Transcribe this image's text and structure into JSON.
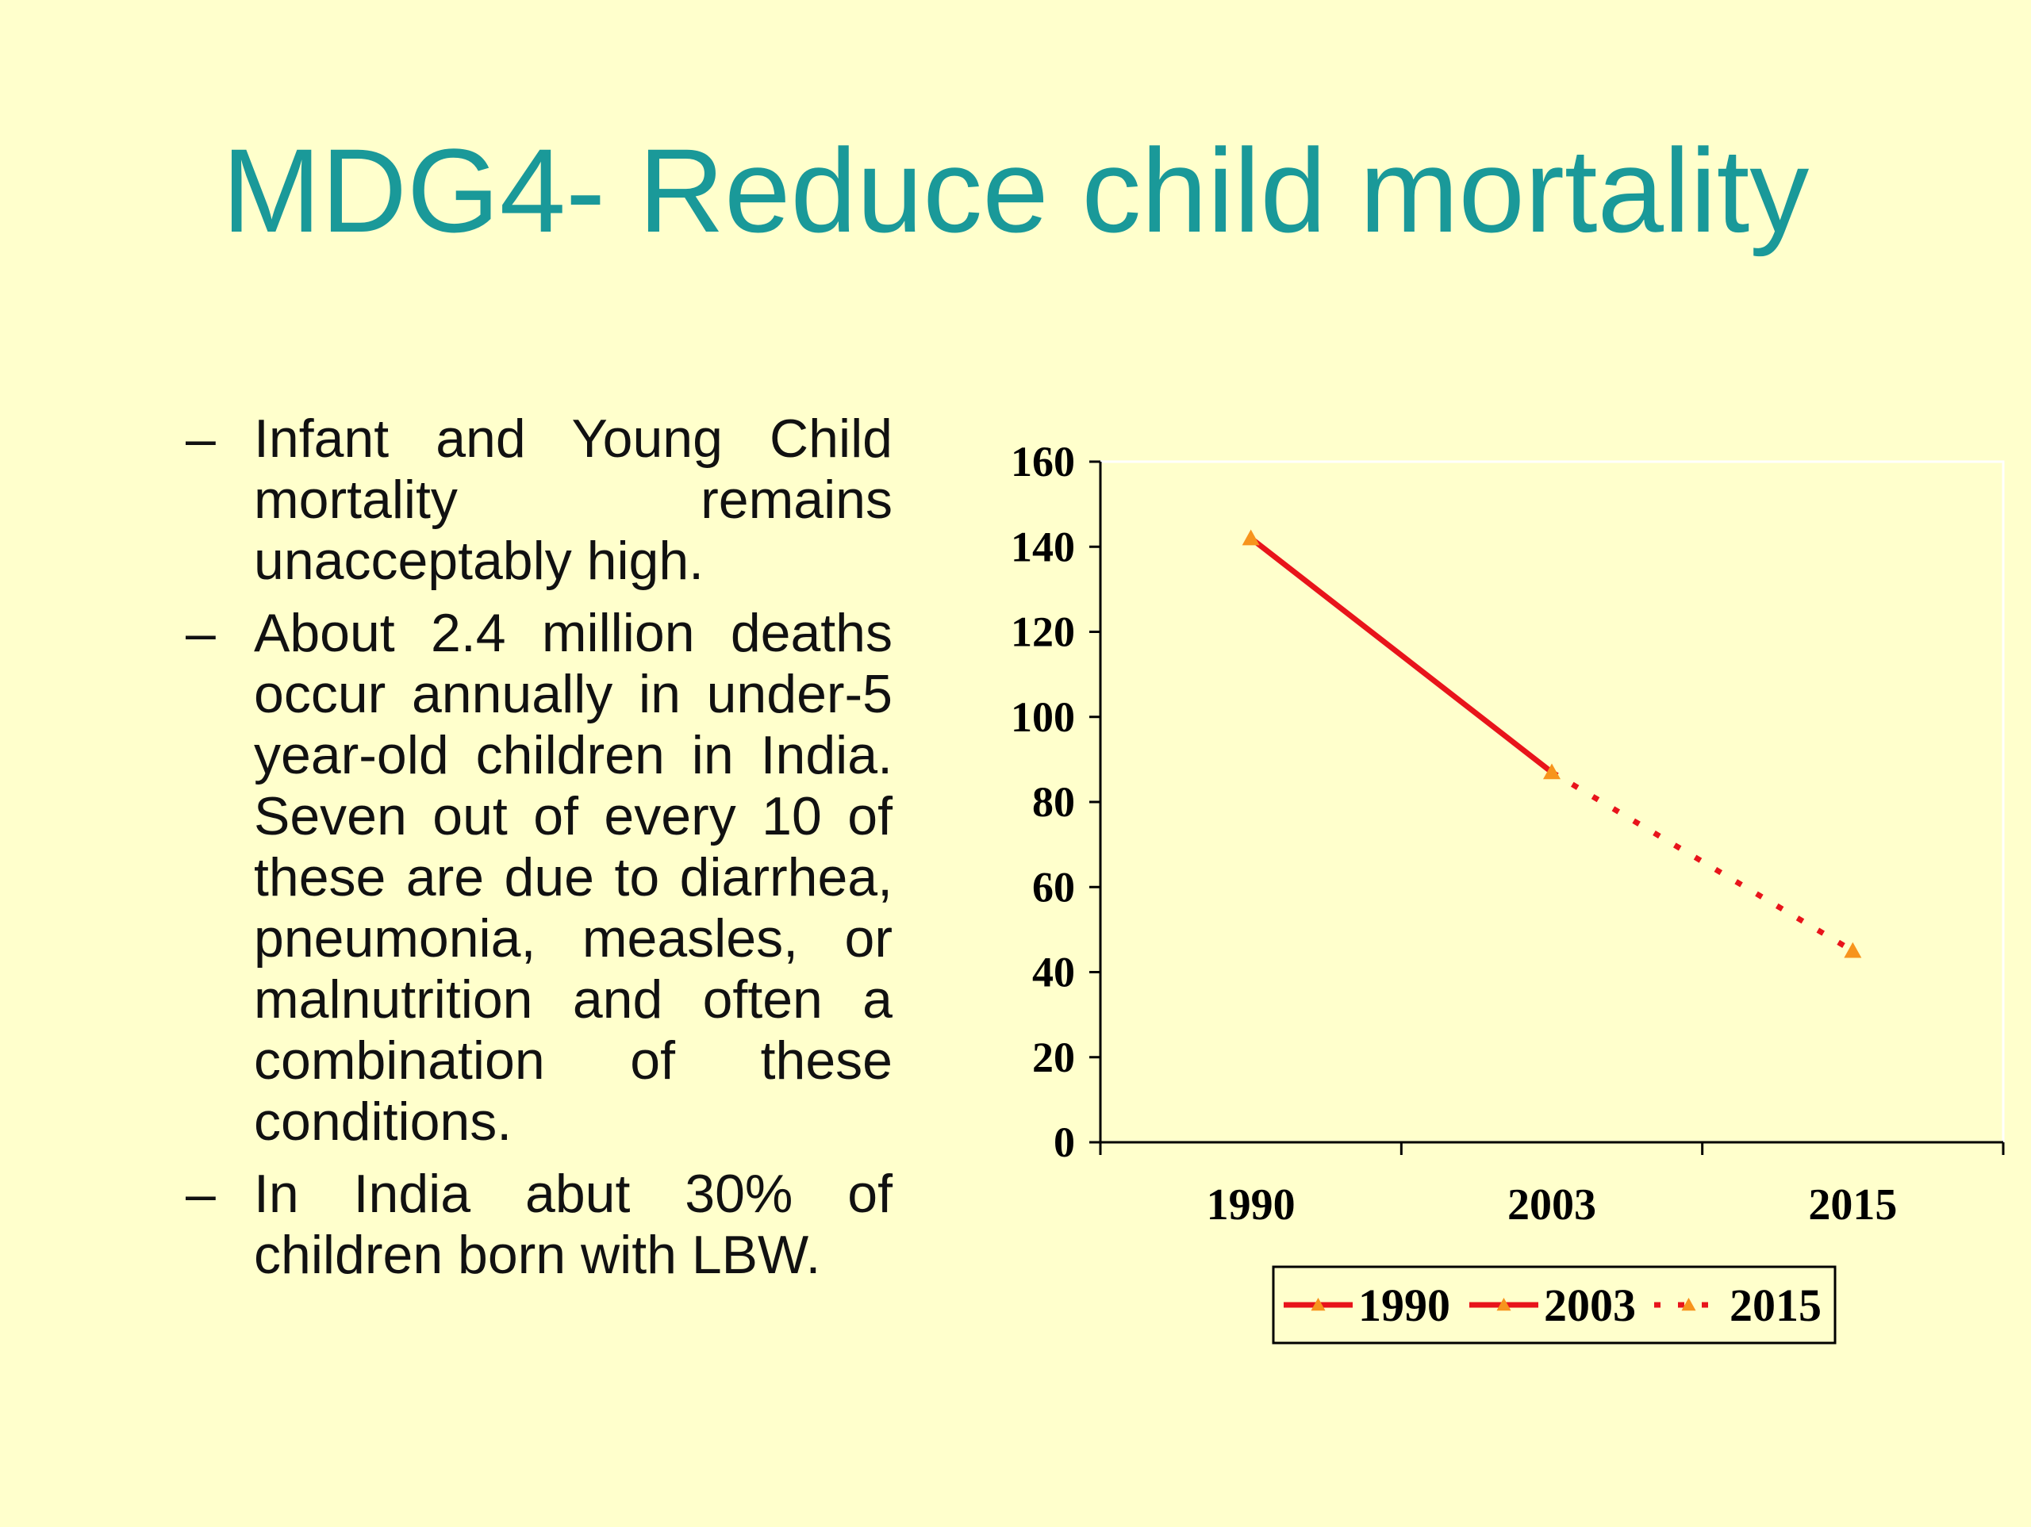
{
  "slide": {
    "title": "MDG4- Reduce child mortality",
    "bullet_marker": "–",
    "bullets": [
      "Infant and Young Child mortality remains unacceptably high.",
      "About 2.4 million deaths occur annually in under-5 year-old children in India. Seven out of every 10 of these are due to diarrhea, pneumonia, measles, or malnutrition and often a combination of these conditions.",
      "In India abut 30%  of children born with LBW."
    ]
  },
  "chart_data": {
    "type": "line",
    "title": "",
    "xlabel": "",
    "ylabel": "",
    "categories": [
      "1990",
      "2003",
      "2015"
    ],
    "ylim": [
      0,
      160
    ],
    "yticks": [
      "0",
      "20",
      "40",
      "60",
      "80",
      "100",
      "120",
      "140",
      "160"
    ],
    "grid": false,
    "legend_position": "bottom",
    "legend": [
      "1990",
      "2003",
      "2015"
    ],
    "series": [
      {
        "x": "1990",
        "y": 142,
        "segment_to_next": "solid"
      },
      {
        "x": "2003",
        "y": 87,
        "segment_to_next": "dotted"
      },
      {
        "x": "2015",
        "y": 45
      }
    ],
    "line_color": "#E8141B",
    "marker_color": "#F7941D"
  }
}
